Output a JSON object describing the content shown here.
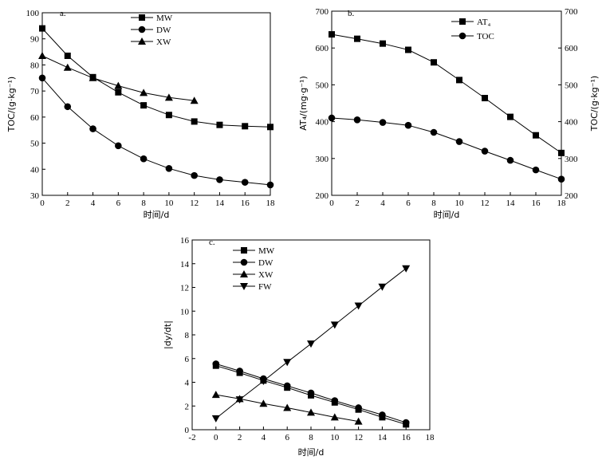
{
  "chart_data": [
    {
      "id": "a",
      "type": "line",
      "panel_label": "a.",
      "xlabel": "时间/d",
      "ylabel": "TOC/(g·kg⁻¹)",
      "xlim": [
        0,
        18
      ],
      "ylim": [
        30,
        100
      ],
      "xticks": [
        0,
        2,
        4,
        6,
        8,
        10,
        12,
        14,
        16,
        18
      ],
      "yticks": [
        30,
        40,
        50,
        60,
        70,
        80,
        90,
        100
      ],
      "legend_position": "top-right",
      "series": [
        {
          "name": "MW",
          "marker": "square",
          "x": [
            0,
            2,
            4,
            6,
            8,
            10,
            12,
            14,
            16,
            18
          ],
          "y": [
            94,
            83.5,
            75.3,
            69.5,
            64.5,
            60.8,
            58.3,
            57,
            56.5,
            56.2
          ]
        },
        {
          "name": "DW",
          "marker": "circle",
          "x": [
            0,
            2,
            4,
            6,
            8,
            10,
            12,
            14,
            16,
            18
          ],
          "y": [
            75,
            64,
            55.5,
            49,
            44,
            40.3,
            37.6,
            36,
            35,
            34
          ]
        },
        {
          "name": "XW",
          "marker": "triangle-up",
          "x": [
            0,
            2,
            4,
            6,
            8,
            10,
            12
          ],
          "y": [
            83.5,
            79,
            75,
            72,
            69.3,
            67.5,
            66.3
          ]
        }
      ]
    },
    {
      "id": "b",
      "type": "line",
      "panel_label": "b.",
      "xlabel": "时间/d",
      "ylabel": "AT₄/(mg·g⁻¹)",
      "ylabel_right": "TOC/(g·kg⁻¹)",
      "xlim": [
        0,
        18
      ],
      "ylim": [
        200,
        700
      ],
      "xticks": [
        0,
        2,
        4,
        6,
        8,
        10,
        12,
        14,
        16,
        18
      ],
      "yticks": [
        200,
        300,
        400,
        500,
        600,
        700
      ],
      "legend_position": "top-right",
      "series": [
        {
          "name": "AT₄",
          "marker": "square",
          "x": [
            0,
            2,
            4,
            6,
            8,
            10,
            12,
            14,
            16,
            18
          ],
          "y": [
            637,
            625,
            612,
            595,
            561,
            513,
            464,
            413,
            363,
            315
          ]
        },
        {
          "name": "TOC",
          "marker": "circle",
          "x": [
            0,
            2,
            4,
            6,
            8,
            10,
            12,
            14,
            16,
            18
          ],
          "y": [
            410,
            405,
            398,
            390,
            371,
            346,
            320,
            295,
            269,
            244
          ]
        }
      ]
    },
    {
      "id": "c",
      "type": "line",
      "panel_label": "c.",
      "xlabel": "时间/d",
      "ylabel": "|dy/dt|",
      "xlim": [
        -2,
        18
      ],
      "ylim": [
        0,
        16
      ],
      "xticks": [
        -2,
        0,
        2,
        4,
        6,
        8,
        10,
        12,
        14,
        16,
        18
      ],
      "yticks": [
        0,
        2,
        4,
        6,
        8,
        10,
        12,
        14,
        16
      ],
      "legend_position": "top-left",
      "series": [
        {
          "name": "MW",
          "marker": "square",
          "x": [
            0,
            2,
            4,
            6,
            8,
            10,
            12,
            14,
            16
          ],
          "y": [
            5.4,
            4.8,
            4.15,
            3.55,
            2.9,
            2.3,
            1.7,
            1.05,
            0.45
          ]
        },
        {
          "name": "DW",
          "marker": "circle",
          "x": [
            0,
            2,
            4,
            6,
            8,
            10,
            12,
            14,
            16
          ],
          "y": [
            5.55,
            4.95,
            4.3,
            3.7,
            3.1,
            2.45,
            1.85,
            1.25,
            0.6
          ]
        },
        {
          "name": "XW",
          "marker": "triangle-up",
          "x": [
            0,
            2,
            4,
            6,
            8,
            10,
            12
          ],
          "y": [
            2.95,
            2.6,
            2.2,
            1.85,
            1.45,
            1.05,
            0.7
          ]
        },
        {
          "name": "FW",
          "marker": "triangle-down",
          "x": [
            0,
            2,
            4,
            6,
            8,
            10,
            12,
            14,
            16
          ],
          "y": [
            0.95,
            2.55,
            4.1,
            5.7,
            7.25,
            8.85,
            10.45,
            12.05,
            13.6
          ]
        }
      ]
    }
  ]
}
